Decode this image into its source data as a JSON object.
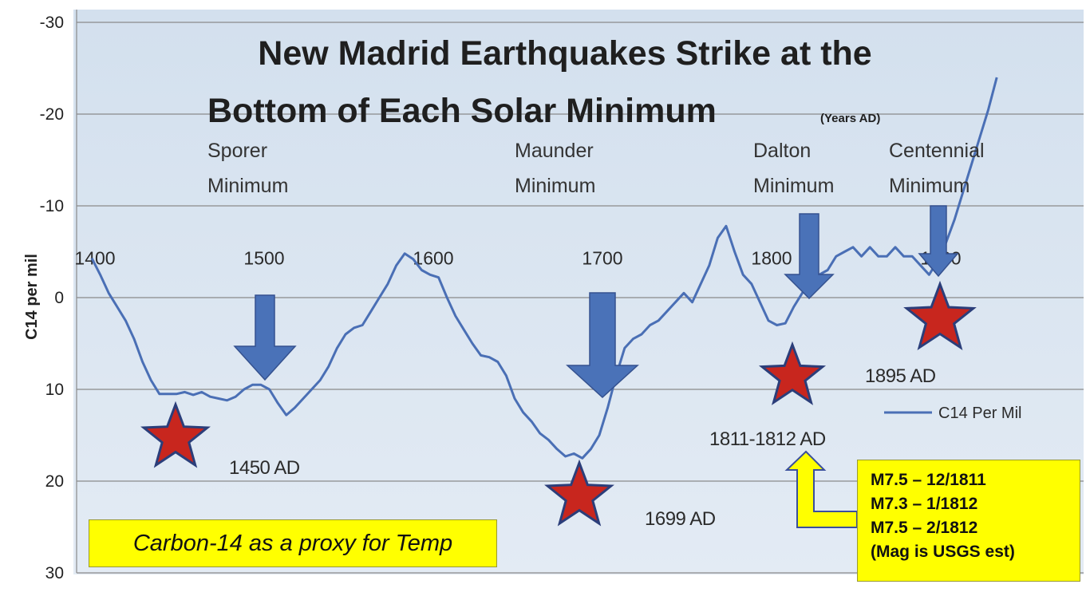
{
  "chart_data": {
    "type": "line",
    "title_main": [
      "New Madrid Earthquakes Strike at the",
      "Bottom of Each Solar Minimum"
    ],
    "title_suffix": "(Years AD)",
    "ylabel": "C14 per mil",
    "ylim": [
      -30,
      30
    ],
    "y_inverted": true,
    "y_ticks": [
      "-30",
      "-20",
      "-10",
      "0",
      "10",
      "20",
      "30"
    ],
    "xlim": [
      1400,
      1965
    ],
    "x_ticks": [
      "1400",
      "1500",
      "1600",
      "1700",
      "1800",
      "1900"
    ],
    "grid": true,
    "legend_position": "right",
    "series": [
      {
        "name": "C14 Per Mil",
        "color": "#4a6fb5",
        "points": [
          [
            1400,
            -4.3
          ],
          [
            1405,
            -2.5
          ],
          [
            1410,
            -0.5
          ],
          [
            1415,
            1.0
          ],
          [
            1420,
            2.5
          ],
          [
            1425,
            4.5
          ],
          [
            1430,
            7.0
          ],
          [
            1435,
            9.0
          ],
          [
            1440,
            10.5
          ],
          [
            1445,
            10.5
          ],
          [
            1450,
            10.5
          ],
          [
            1455,
            10.3
          ],
          [
            1460,
            10.6
          ],
          [
            1465,
            10.3
          ],
          [
            1470,
            10.8
          ],
          [
            1475,
            11.0
          ],
          [
            1480,
            11.2
          ],
          [
            1485,
            10.8
          ],
          [
            1490,
            10.0
          ],
          [
            1495,
            9.5
          ],
          [
            1500,
            9.5
          ],
          [
            1505,
            10.0
          ],
          [
            1510,
            11.5
          ],
          [
            1515,
            12.8
          ],
          [
            1520,
            12.0
          ],
          [
            1525,
            11.0
          ],
          [
            1530,
            10.0
          ],
          [
            1535,
            9.0
          ],
          [
            1540,
            7.5
          ],
          [
            1545,
            5.5
          ],
          [
            1550,
            4.0
          ],
          [
            1555,
            3.3
          ],
          [
            1560,
            3.0
          ],
          [
            1565,
            1.5
          ],
          [
            1570,
            0.0
          ],
          [
            1575,
            -1.5
          ],
          [
            1580,
            -3.5
          ],
          [
            1585,
            -4.8
          ],
          [
            1590,
            -4.2
          ],
          [
            1595,
            -3.0
          ],
          [
            1600,
            -2.5
          ],
          [
            1605,
            -2.2
          ],
          [
            1610,
            0.0
          ],
          [
            1615,
            2.0
          ],
          [
            1620,
            3.5
          ],
          [
            1625,
            5.0
          ],
          [
            1630,
            6.3
          ],
          [
            1635,
            6.5
          ],
          [
            1640,
            7.0
          ],
          [
            1645,
            8.5
          ],
          [
            1650,
            11.0
          ],
          [
            1655,
            12.5
          ],
          [
            1660,
            13.5
          ],
          [
            1665,
            14.8
          ],
          [
            1670,
            15.5
          ],
          [
            1675,
            16.5
          ],
          [
            1680,
            17.3
          ],
          [
            1685,
            17.0
          ],
          [
            1690,
            17.5
          ],
          [
            1695,
            16.5
          ],
          [
            1700,
            15.0
          ],
          [
            1705,
            12.0
          ],
          [
            1710,
            8.5
          ],
          [
            1715,
            5.5
          ],
          [
            1720,
            4.5
          ],
          [
            1725,
            4.0
          ],
          [
            1730,
            3.0
          ],
          [
            1735,
            2.5
          ],
          [
            1740,
            1.5
          ],
          [
            1745,
            0.5
          ],
          [
            1750,
            -0.5
          ],
          [
            1755,
            0.5
          ],
          [
            1760,
            -1.5
          ],
          [
            1765,
            -3.5
          ],
          [
            1770,
            -6.5
          ],
          [
            1775,
            -7.8
          ],
          [
            1780,
            -5.0
          ],
          [
            1785,
            -2.5
          ],
          [
            1790,
            -1.5
          ],
          [
            1795,
            0.5
          ],
          [
            1800,
            2.5
          ],
          [
            1805,
            3.0
          ],
          [
            1810,
            2.8
          ],
          [
            1815,
            1.0
          ],
          [
            1820,
            -0.5
          ],
          [
            1825,
            -1.5
          ],
          [
            1830,
            -2.5
          ],
          [
            1835,
            -3.0
          ],
          [
            1840,
            -4.5
          ],
          [
            1845,
            -5.0
          ],
          [
            1850,
            -5.5
          ],
          [
            1855,
            -4.5
          ],
          [
            1860,
            -5.5
          ],
          [
            1865,
            -4.5
          ],
          [
            1870,
            -4.5
          ],
          [
            1875,
            -5.5
          ],
          [
            1880,
            -4.5
          ],
          [
            1885,
            -4.5
          ],
          [
            1890,
            -3.5
          ],
          [
            1895,
            -2.5
          ],
          [
            1900,
            -4.0
          ],
          [
            1905,
            -6.0
          ],
          [
            1910,
            -8.5
          ],
          [
            1915,
            -11.5
          ],
          [
            1920,
            -14.5
          ],
          [
            1925,
            -17.5
          ],
          [
            1930,
            -20.5
          ],
          [
            1935,
            -24.0
          ]
        ]
      }
    ],
    "minima": [
      {
        "label_lines": [
          "Sporer",
          "Minimum"
        ],
        "arrow_year": 1500
      },
      {
        "label_lines": [
          "Maunder",
          "Minimum"
        ],
        "arrow_year": 1699
      },
      {
        "label_lines": [
          "Dalton",
          "Minimum"
        ],
        "arrow_year": 1811
      },
      {
        "label_lines": [
          "Centennial",
          "Minimum"
        ],
        "arrow_year": 1895
      }
    ],
    "earthquakes": [
      {
        "label": "1450 AD",
        "year": 1450,
        "c14": 15.0
      },
      {
        "label": "1699 AD",
        "year": 1699,
        "c14": 21.5
      },
      {
        "label": "1811-1812 AD",
        "year": 1811,
        "c14": 8.5
      },
      {
        "label": "1895 AD",
        "year": 1895,
        "c14": 2.5
      }
    ],
    "annotations": {
      "proxy_note": "Carbon-14 as a proxy for Temp",
      "quake_list": [
        "M7.5 – 12/1811",
        "M7.3 – 1/1812",
        "M7.5 – 2/1812",
        "(Mag is USGS est)"
      ]
    },
    "colors": {
      "line": "#4a6fb5",
      "arrow": "#4a72b8",
      "star_fill": "#c8261e",
      "star_stroke": "#2b3e7a",
      "note_bg": "#ffff00",
      "callout_arrow": "#ffff00"
    }
  }
}
